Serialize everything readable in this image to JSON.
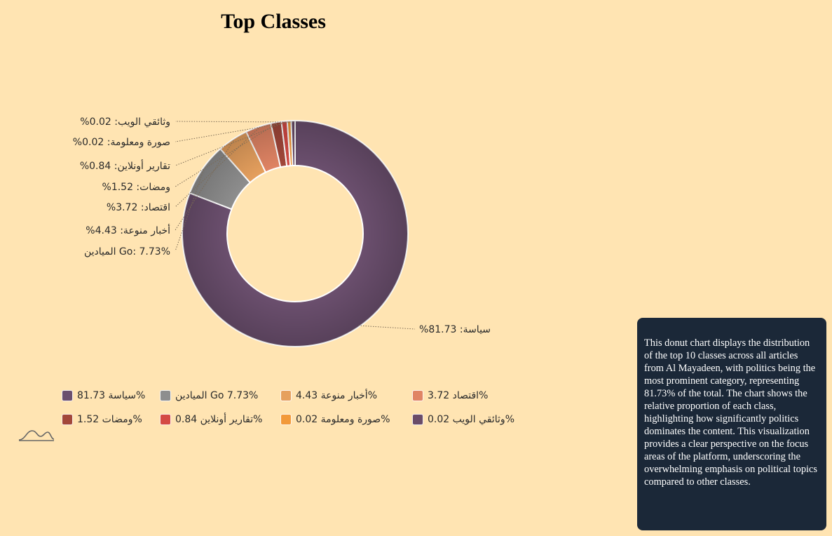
{
  "chart_data": {
    "type": "pie",
    "title": "Top Classes",
    "donut": true,
    "slices": [
      {
        "name": "سياسة",
        "value": 81.73,
        "color": "#6b4f6e",
        "label": "%سياسة: 81.73",
        "legend": "سياسة 81.73%"
      },
      {
        "name": "الميادين Go",
        "value": 7.73,
        "color": "#8e8e8e",
        "label": "الميادين Go: 7.73%",
        "legend": "الميادين Go 7.73%"
      },
      {
        "name": "أخبار منوعة",
        "value": 4.43,
        "color": "#e6a05e",
        "label": "%أخبار منوعة: 4.43",
        "legend": "أخبار منوعة 4.43%"
      },
      {
        "name": "اقتصاد",
        "value": 3.72,
        "color": "#e08464",
        "label": "%اقتصاد: 3.72",
        "legend": "اقتصاد 3.72%"
      },
      {
        "name": "ومضات",
        "value": 1.52,
        "color": "#a2473a",
        "label": "%ومضات: 1.52",
        "legend": "ومضات 1.52%"
      },
      {
        "name": "تقارير أونلاين",
        "value": 0.84,
        "color": "#d44a44",
        "label": "%تقارير أونلاين: 0.84",
        "legend": "تقارير أونلاين 0.84%"
      },
      {
        "name": "صورة ومعلومة",
        "value": 0.02,
        "color": "#f2993a",
        "label": "%صورة ومعلومة: 0.02",
        "legend": "صورة ومعلومة 0.02%"
      },
      {
        "name": "وثائقي الويب",
        "value": 0.02,
        "color": "#6a4c68",
        "label": "%وثائقي الويب: 0.02",
        "legend": "وثائقي الويب 0.02%"
      }
    ],
    "legend_placement": "bottom"
  },
  "brand": {
    "icon": "bell-curve-icon"
  },
  "description": "This donut chart displays the distribution of the top 10 classes across all articles from Al Mayadeen, with politics being the most prominent category, representing 81.73% of the total. The chart shows the relative proportion of each class, highlighting how significantly politics dominates the content. This visualization provides a clear perspective on the focus areas of the platform, underscoring the overwhelming emphasis on political topics compared to other classes."
}
